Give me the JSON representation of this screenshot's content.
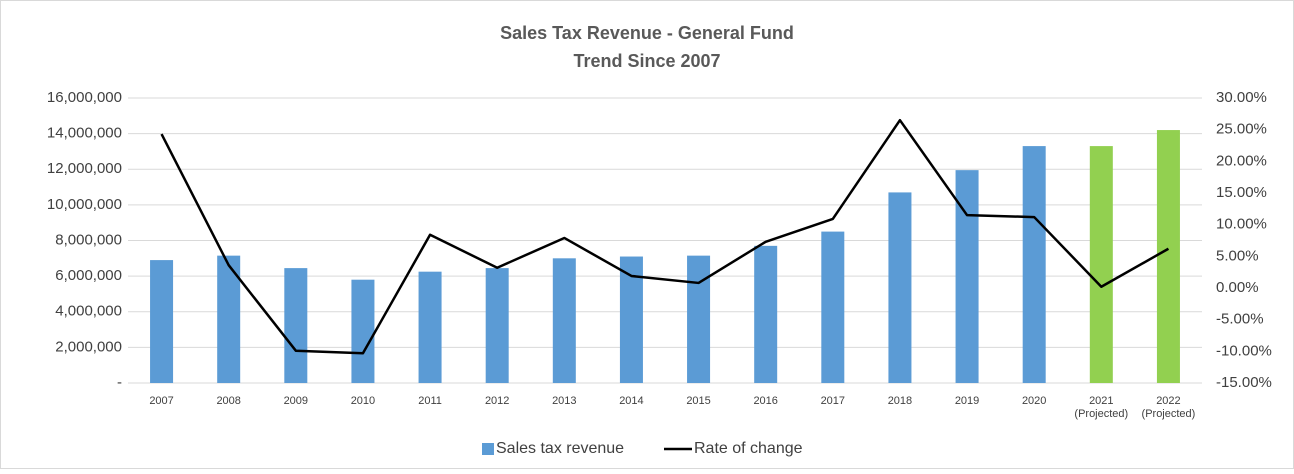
{
  "chart_data": {
    "type": "bar",
    "title": "Sales Tax Revenue - General Fund",
    "subtitle": "Trend Since 2007",
    "categories": [
      "2007",
      "2008",
      "2009",
      "2010",
      "2011",
      "2012",
      "2013",
      "2014",
      "2015",
      "2016",
      "2017",
      "2018",
      "2019",
      "2020",
      "2021 (Projected)",
      "2022 (Projected)"
    ],
    "series": [
      {
        "name": "Sales tax revenue",
        "type": "bar",
        "color": "#5b9bd5",
        "colors": [
          "#5b9bd5",
          "#5b9bd5",
          "#5b9bd5",
          "#5b9bd5",
          "#5b9bd5",
          "#5b9bd5",
          "#5b9bd5",
          "#5b9bd5",
          "#5b9bd5",
          "#5b9bd5",
          "#5b9bd5",
          "#5b9bd5",
          "#5b9bd5",
          "#5b9bd5",
          "#92d050",
          "#92d050"
        ],
        "values": [
          6900000,
          7150000,
          6450000,
          5800000,
          6250000,
          6450000,
          7000000,
          7100000,
          7150000,
          7700000,
          8500000,
          10700000,
          11950000,
          13300000,
          13300000,
          14200000
        ]
      },
      {
        "name": "Rate of change",
        "type": "line",
        "color": "#000000",
        "axis": "y2",
        "values": [
          24.3,
          3.6,
          -9.9,
          -10.3,
          8.4,
          3.2,
          7.9,
          1.9,
          0.8,
          7.3,
          10.9,
          26.5,
          11.5,
          11.2,
          0.2,
          6.2
        ]
      }
    ],
    "ylim": [
      0,
      16000000
    ],
    "yticks": [
      {
        "value": 0,
        "label": "-"
      },
      {
        "value": 2000000,
        "label": "2,000,000"
      },
      {
        "value": 4000000,
        "label": "4,000,000"
      },
      {
        "value": 6000000,
        "label": "6,000,000"
      },
      {
        "value": 8000000,
        "label": "8,000,000"
      },
      {
        "value": 10000000,
        "label": "10,000,000"
      },
      {
        "value": 12000000,
        "label": "12,000,000"
      },
      {
        "value": 14000000,
        "label": "14,000,000"
      },
      {
        "value": 16000000,
        "label": "16,000,000"
      }
    ],
    "y2lim": [
      -15,
      30
    ],
    "y2ticks": [
      {
        "value": -15,
        "label": "-15.00%"
      },
      {
        "value": -10,
        "label": "-10.00%"
      },
      {
        "value": -5,
        "label": "-5.00%"
      },
      {
        "value": 0,
        "label": "0.00%"
      },
      {
        "value": 5,
        "label": "5.00%"
      },
      {
        "value": 10,
        "label": "10.00%"
      },
      {
        "value": 15,
        "label": "15.00%"
      },
      {
        "value": 20,
        "label": "20.00%"
      },
      {
        "value": 25,
        "label": "25.00%"
      },
      {
        "value": 30,
        "label": "30.00%"
      }
    ],
    "grid": true,
    "legend": "bottom"
  }
}
